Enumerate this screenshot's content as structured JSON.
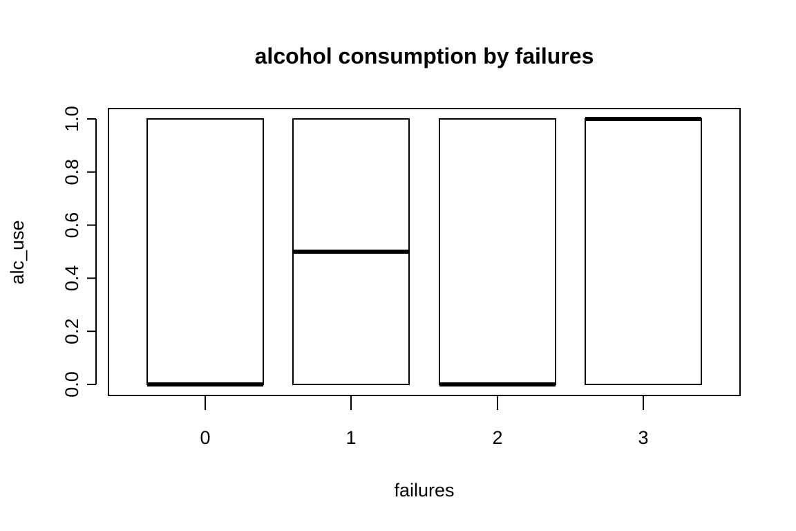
{
  "chart_data": {
    "type": "boxplot",
    "title": "alcohol consumption by failures",
    "xlabel": "failures",
    "ylabel": "alc_use",
    "categories": [
      "0",
      "1",
      "2",
      "3"
    ],
    "ylim": [
      0,
      1
    ],
    "yticks": [
      "0.0",
      "0.2",
      "0.4",
      "0.6",
      "0.8",
      "1.0"
    ],
    "ytick_values": [
      0,
      0.2,
      0.4,
      0.6,
      0.8,
      1.0
    ],
    "boxes": [
      {
        "category": "0",
        "q1": 0,
        "median": 0,
        "q3": 1
      },
      {
        "category": "1",
        "q1": 0,
        "median": 0.5,
        "q3": 1
      },
      {
        "category": "2",
        "q1": 0,
        "median": 0,
        "q3": 1
      },
      {
        "category": "3",
        "q1": 0,
        "median": 1,
        "q3": 1
      }
    ],
    "grid": false,
    "legend": "none"
  }
}
